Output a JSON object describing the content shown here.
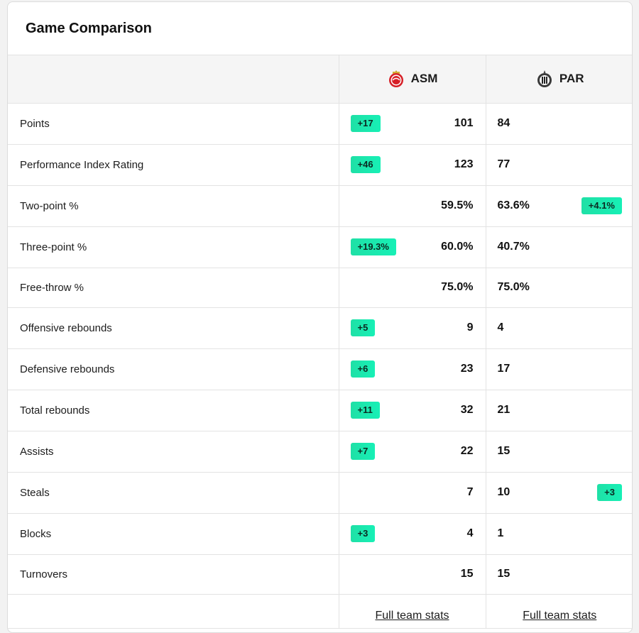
{
  "title": "Game Comparison",
  "teams": {
    "home": {
      "code": "ASM",
      "logo_icon": "asm-logo-icon"
    },
    "away": {
      "code": "PAR",
      "logo_icon": "par-logo-icon"
    }
  },
  "colors": {
    "badge": "#17f0b6",
    "header_bg": "#f5f5f5"
  },
  "rows": [
    {
      "label": "Points",
      "home": "101",
      "away": "84",
      "badge": "+17",
      "badge_side": "home"
    },
    {
      "label": "Performance Index Rating",
      "home": "123",
      "away": "77",
      "badge": "+46",
      "badge_side": "home"
    },
    {
      "label": "Two-point %",
      "home": "59.5%",
      "away": "63.6%",
      "badge": "+4.1%",
      "badge_side": "away"
    },
    {
      "label": "Three-point %",
      "home": "60.0%",
      "away": "40.7%",
      "badge": "+19.3%",
      "badge_side": "home"
    },
    {
      "label": "Free-throw %",
      "home": "75.0%",
      "away": "75.0%",
      "badge": "",
      "badge_side": ""
    },
    {
      "label": "Offensive rebounds",
      "home": "9",
      "away": "4",
      "badge": "+5",
      "badge_side": "home"
    },
    {
      "label": "Defensive rebounds",
      "home": "23",
      "away": "17",
      "badge": "+6",
      "badge_side": "home"
    },
    {
      "label": "Total rebounds",
      "home": "32",
      "away": "21",
      "badge": "+11",
      "badge_side": "home"
    },
    {
      "label": "Assists",
      "home": "22",
      "away": "15",
      "badge": "+7",
      "badge_side": "home"
    },
    {
      "label": "Steals",
      "home": "7",
      "away": "10",
      "badge": "+3",
      "badge_side": "away"
    },
    {
      "label": "Blocks",
      "home": "4",
      "away": "1",
      "badge": "+3",
      "badge_side": "home"
    },
    {
      "label": "Turnovers",
      "home": "15",
      "away": "15",
      "badge": "",
      "badge_side": ""
    }
  ],
  "footer": {
    "home_link": "Full team stats",
    "away_link": "Full team stats"
  }
}
